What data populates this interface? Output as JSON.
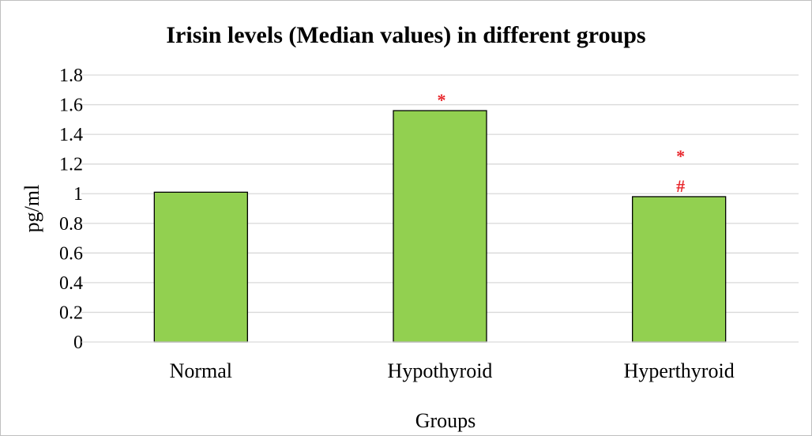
{
  "chart_data": {
    "type": "bar",
    "title": "Irisin levels (Median values) in different groups",
    "xlabel": "Groups",
    "ylabel": "pg/ml",
    "categories": [
      "Normal",
      "Hypothyroid",
      "Hyperthyroid"
    ],
    "values": [
      1.01,
      1.56,
      0.98
    ],
    "ylim": [
      0,
      1.8
    ],
    "yticks": [
      "0",
      "0.2",
      "0.4",
      "0.6",
      "0.8",
      "1",
      "1.2",
      "1.4",
      "1.6",
      "1.8"
    ],
    "grid": true,
    "legend": "none",
    "bar_color": "#92d050",
    "annotations": [
      {
        "category": "Hypothyroid",
        "symbols": [
          "*"
        ]
      },
      {
        "category": "Hyperthyroid",
        "symbols": [
          "*",
          "#"
        ]
      }
    ]
  }
}
